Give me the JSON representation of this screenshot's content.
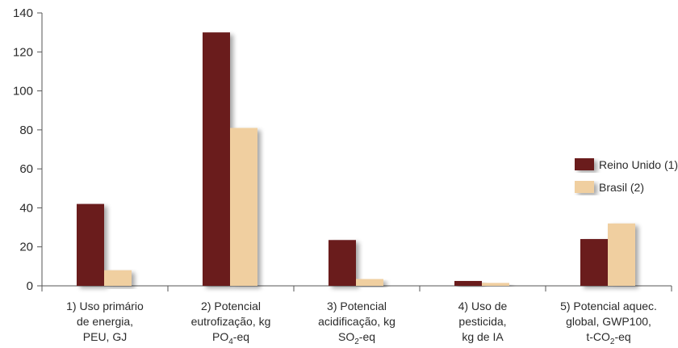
{
  "chart_data": {
    "type": "bar",
    "categories": [
      [
        "1) Uso primário",
        "de energia,",
        "PEU, GJ"
      ],
      [
        "2) Potencial",
        "eutrofização, kg",
        "PO4-eq"
      ],
      [
        "3) Potencial",
        "acidificação, kg",
        "SO2-eq"
      ],
      [
        "4) Uso de",
        "pesticida,",
        "kg de IA"
      ],
      [
        "5) Potencial aquec.",
        "global, GWP100,",
        "t-CO2-eq"
      ]
    ],
    "series": [
      {
        "name": "Reino Unido (1)",
        "color": "#6b1a1f",
        "values": [
          42,
          130,
          23.5,
          2.5,
          24
        ]
      },
      {
        "name": "Brasil (2)",
        "color": "#f0cfa0",
        "values": [
          8,
          81,
          3.5,
          1.5,
          32
        ]
      }
    ],
    "title": "",
    "xlabel": "",
    "ylabel": "",
    "ylim": [
      0,
      140
    ],
    "yticks": [
      0,
      20,
      40,
      60,
      80,
      100,
      120,
      140
    ],
    "legend_position": "right",
    "grid": false
  }
}
